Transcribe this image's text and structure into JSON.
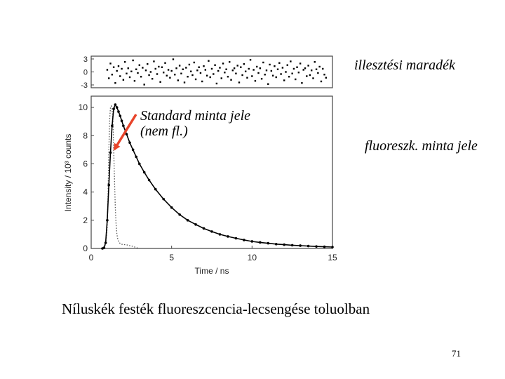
{
  "annotations": {
    "residual_label": "illesztési maradék",
    "standard_label": "Standard minta jele (nem fl.)",
    "fluor_label": "fluoreszk. minta jele"
  },
  "caption": "Níluskék festék fluoreszcencia-lecsengése toluolban",
  "page_number": "71",
  "colors": {
    "arrow": "#e8442a",
    "data": "#000000"
  },
  "chart_data": [
    {
      "type": "scatter",
      "xlim": [
        0,
        15
      ],
      "ylim": [
        -3,
        3
      ],
      "yticks": [
        3,
        0,
        -3
      ],
      "ytick_labels": [
        "3",
        "0",
        "-3"
      ],
      "residuals_x": [
        1.0,
        1.1,
        1.2,
        1.3,
        1.4,
        1.5,
        1.6,
        1.7,
        1.8,
        1.9,
        2.0,
        2.1,
        2.2,
        2.3,
        2.4,
        2.5,
        2.6,
        2.7,
        2.8,
        2.9,
        3.0,
        3.1,
        3.2,
        3.3,
        3.4,
        3.5,
        3.6,
        3.7,
        3.8,
        3.9,
        4.0,
        4.1,
        4.2,
        4.3,
        4.4,
        4.5,
        4.6,
        4.7,
        4.8,
        4.9,
        5.0,
        5.1,
        5.2,
        5.3,
        5.4,
        5.5,
        5.6,
        5.7,
        5.8,
        5.9,
        6.0,
        6.1,
        6.2,
        6.3,
        6.4,
        6.5,
        6.6,
        6.7,
        6.8,
        6.9,
        7.0,
        7.1,
        7.2,
        7.3,
        7.4,
        7.5,
        7.6,
        7.7,
        7.8,
        7.9,
        8.0,
        8.1,
        8.2,
        8.3,
        8.4,
        8.5,
        8.6,
        8.7,
        8.8,
        8.9,
        9.0,
        9.1,
        9.2,
        9.3,
        9.4,
        9.5,
        9.6,
        9.7,
        9.8,
        9.9,
        10.0,
        10.1,
        10.2,
        10.3,
        10.4,
        10.5,
        10.6,
        10.7,
        10.8,
        10.9,
        11.0,
        11.1,
        11.2,
        11.3,
        11.4,
        11.5,
        11.6,
        11.7,
        11.8,
        11.9,
        12.0,
        12.1,
        12.2,
        12.3,
        12.4,
        12.5,
        12.6,
        12.7,
        12.8,
        12.9,
        13.0,
        13.1,
        13.2,
        13.3,
        13.4,
        13.5,
        13.6,
        13.7,
        13.8,
        13.9,
        14.0,
        14.1,
        14.2,
        14.3,
        14.4,
        14.5,
        14.6
      ],
      "residuals_y": [
        0.4,
        -1.2,
        1.6,
        -0.5,
        0.9,
        -2.1,
        0.2,
        1.1,
        -0.8,
        0.6,
        -1.5,
        1.9,
        -0.3,
        0.7,
        -1.0,
        0.1,
        2.2,
        -1.7,
        0.5,
        -0.2,
        1.3,
        -0.9,
        0.8,
        -2.4,
        0.3,
        1.5,
        -0.6,
        0.0,
        -1.3,
        2.0,
        0.6,
        -0.4,
        1.0,
        -1.9,
        0.9,
        -0.1,
        1.7,
        -0.7,
        0.4,
        -1.1,
        0.2,
        2.4,
        -0.5,
        0.7,
        -1.6,
        1.2,
        -0.3,
        0.5,
        -2.0,
        0.8,
        -0.9,
        1.4,
        0.1,
        -0.6,
        1.8,
        -1.4,
        0.3,
        0.9,
        -0.2,
        -1.8,
        1.1,
        0.4,
        -0.7,
        2.1,
        -1.0,
        0.6,
        -0.4,
        1.3,
        -2.2,
        0.2,
        0.8,
        -1.2,
        1.6,
        -0.1,
        0.5,
        -0.9,
        1.9,
        -1.5,
        0.3,
        0.7,
        -0.3,
        1.2,
        -2.0,
        0.9,
        -0.6,
        1.5,
        0.1,
        -1.1,
        0.6,
        2.3,
        -0.8,
        0.4,
        -1.7,
        1.0,
        -0.2,
        0.7,
        -1.3,
        1.8,
        -0.5,
        0.3,
        -2.3,
        1.4,
        0.2,
        -0.7,
        1.1,
        -1.0,
        0.5,
        1.7,
        -0.4,
        0.8,
        -1.6,
        0.0,
        1.3,
        -0.9,
        2.0,
        -0.3,
        0.6,
        -1.4,
        0.9,
        -0.1,
        1.6,
        -2.1,
        0.4,
        0.7,
        -0.8,
        1.2,
        -0.6,
        0.3,
        -1.2,
        1.9,
        0.5,
        -0.2,
        1.0,
        -1.8,
        0.6,
        -0.5,
        -1.1
      ]
    },
    {
      "type": "line",
      "xlabel": "Time / ns",
      "ylabel": "Intensity / 10³ counts",
      "xlim": [
        0,
        15
      ],
      "ylim": [
        0,
        10.8
      ],
      "xticks": [
        0,
        5,
        10,
        15
      ],
      "yticks": [
        0,
        2,
        4,
        6,
        8,
        10
      ],
      "series": [
        {
          "style": "dotted",
          "x": [
            0.6,
            0.8,
            0.9,
            1.0,
            1.05,
            1.1,
            1.15,
            1.2,
            1.25,
            1.3,
            1.35,
            1.4,
            1.45,
            1.5,
            1.55,
            1.6,
            1.65,
            1.7,
            1.8,
            1.9,
            2.0,
            2.2,
            2.4,
            2.6,
            2.8,
            3.0
          ],
          "y": [
            0.0,
            0.05,
            0.3,
            1.5,
            4.0,
            7.0,
            9.2,
            10.0,
            10.1,
            9.9,
            9.0,
            7.0,
            4.8,
            2.9,
            1.7,
            1.0,
            0.7,
            0.5,
            0.35,
            0.3,
            0.28,
            0.26,
            0.2,
            0.15,
            0.06,
            0.0
          ]
        },
        {
          "style": "solid-dots",
          "x": [
            0.7,
            0.8,
            0.9,
            1.0,
            1.1,
            1.2,
            1.3,
            1.4,
            1.5,
            1.6,
            1.7,
            1.8,
            1.9,
            2.0,
            2.2,
            2.4,
            2.6,
            2.8,
            3.0,
            3.3,
            3.6,
            4.0,
            4.5,
            5.0,
            5.5,
            6.0,
            6.5,
            7.0,
            7.5,
            8.0,
            8.5,
            9.0,
            9.5,
            10.0,
            10.5,
            11.0,
            11.5,
            12.0,
            12.5,
            13.0,
            13.5,
            14.0,
            14.5,
            15.0
          ],
          "y": [
            0.0,
            0.05,
            0.4,
            2.0,
            4.5,
            6.8,
            8.7,
            9.9,
            10.2,
            10.0,
            9.7,
            9.4,
            9.05,
            8.7,
            8.1,
            7.5,
            7.0,
            6.5,
            6.0,
            5.4,
            4.85,
            4.2,
            3.5,
            2.9,
            2.4,
            2.0,
            1.7,
            1.42,
            1.2,
            1.0,
            0.85,
            0.72,
            0.6,
            0.5,
            0.43,
            0.37,
            0.31,
            0.27,
            0.23,
            0.2,
            0.17,
            0.14,
            0.12,
            0.1
          ]
        }
      ]
    }
  ]
}
